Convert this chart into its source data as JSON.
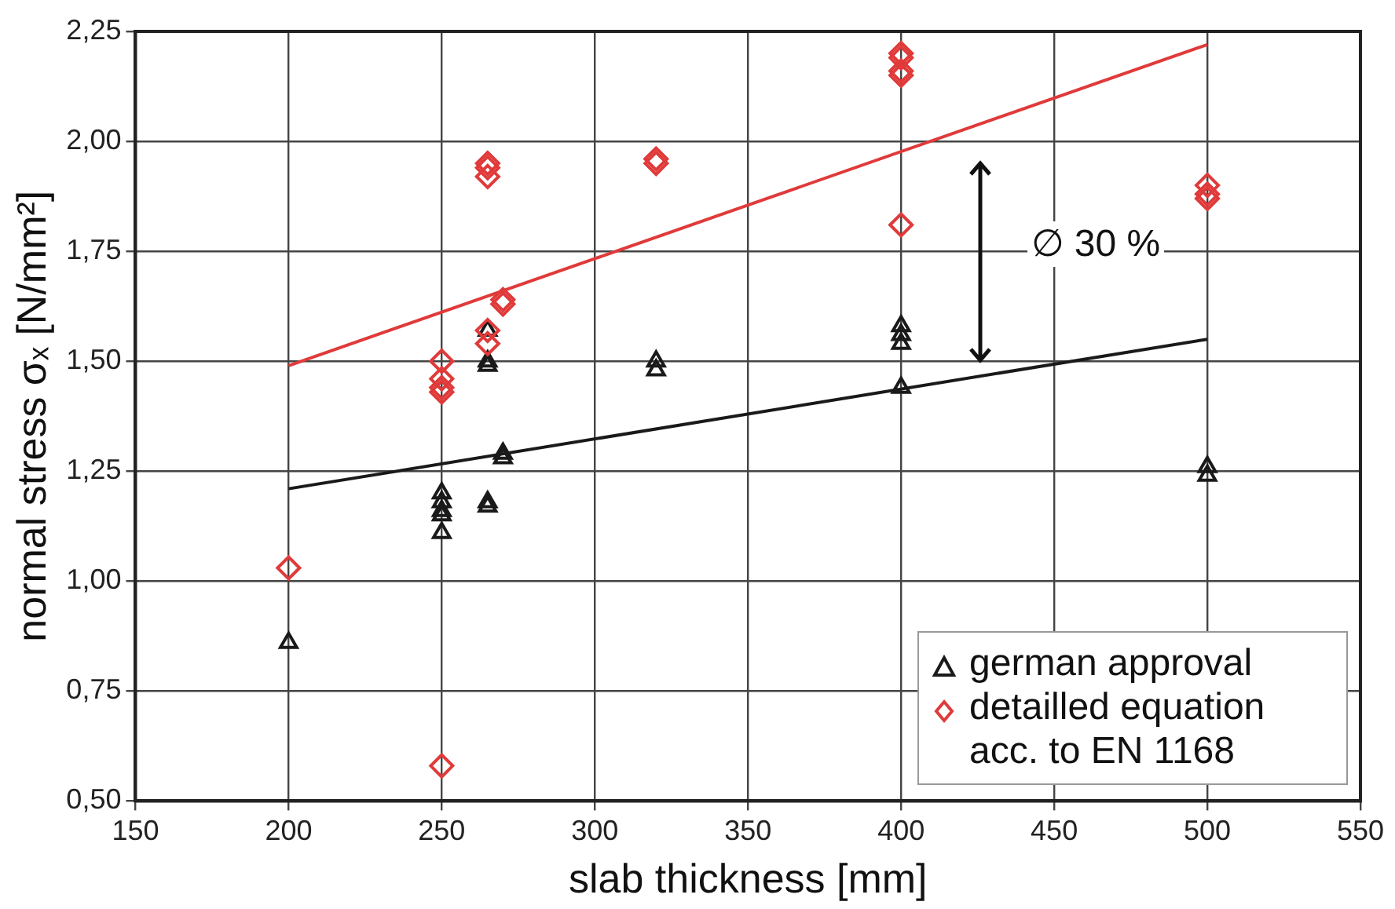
{
  "chart_data": {
    "type": "scatter",
    "xlabel": "slab thickness [mm]",
    "ylabel": "normal stress σₓ [N/mm²]",
    "xlim": [
      150,
      550
    ],
    "xticks": [
      150,
      200,
      250,
      300,
      350,
      400,
      450,
      500,
      550
    ],
    "ylim": [
      0.5,
      2.25
    ],
    "yticks": [
      {
        "value": 0.5,
        "label": "0,50"
      },
      {
        "value": 0.75,
        "label": "0,75"
      },
      {
        "value": 1.0,
        "label": "1,00"
      },
      {
        "value": 1.25,
        "label": "1,25"
      },
      {
        "value": 1.5,
        "label": "1,50"
      },
      {
        "value": 1.75,
        "label": "1,75"
      },
      {
        "value": 2.0,
        "label": "2,00"
      },
      {
        "value": 2.25,
        "label": "2,25"
      }
    ],
    "grid": true,
    "legend": "bottom right",
    "annotations": [
      "∅ 30 %"
    ],
    "series": [
      {
        "name": "german approval",
        "color": "#1a1a1a",
        "marker": "triangle",
        "x": [
          200,
          250,
          250,
          250,
          250,
          250,
          265,
          265,
          265,
          265,
          265,
          270,
          270,
          320,
          320,
          400,
          400,
          400,
          400,
          500,
          500
        ],
        "values": [
          0.86,
          1.2,
          1.18,
          1.16,
          1.15,
          1.11,
          1.57,
          1.5,
          1.49,
          1.18,
          1.17,
          1.29,
          1.28,
          1.5,
          1.48,
          1.58,
          1.56,
          1.54,
          1.44,
          1.26,
          1.24
        ]
      },
      {
        "name": "detailled equation acc. to EN 1168",
        "color": "#e03a3a",
        "marker": "diamond",
        "x": [
          200,
          250,
          250,
          250,
          250,
          250,
          265,
          265,
          265,
          265,
          265,
          270,
          270,
          320,
          320,
          400,
          400,
          400,
          400,
          400,
          500,
          500,
          500
        ],
        "values": [
          1.03,
          1.5,
          1.46,
          1.44,
          1.43,
          0.58,
          1.95,
          1.94,
          1.92,
          1.57,
          1.54,
          1.64,
          1.63,
          1.96,
          1.95,
          2.2,
          2.19,
          2.16,
          2.15,
          1.81,
          1.9,
          1.88,
          1.87
        ]
      },
      {
        "type": "line",
        "color": "#1a1a1a",
        "marker": "none",
        "x": [
          200,
          500
        ],
        "values": [
          1.21,
          1.55
        ]
      },
      {
        "type": "line",
        "color": "#e03a3a",
        "marker": "none",
        "x": [
          200,
          500
        ],
        "values": [
          1.49,
          2.22
        ]
      }
    ]
  }
}
